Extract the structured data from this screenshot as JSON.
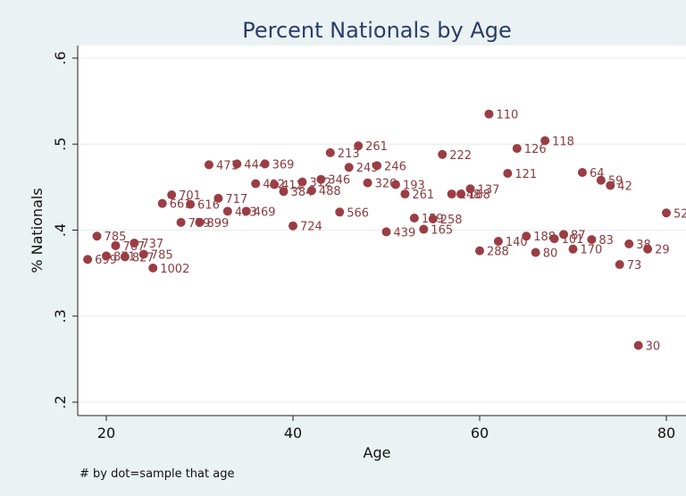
{
  "chart_data": {
    "type": "scatter",
    "title": "Percent Nationals by Age",
    "xlabel": "Age",
    "ylabel": "% Nationals",
    "note": "# by dot=sample that age",
    "xlim": [
      17,
      82
    ],
    "ylim": [
      0.2,
      0.6
    ],
    "xticks": [
      20,
      40,
      60,
      80
    ],
    "yticks": [
      0.2,
      0.3,
      0.4,
      0.5,
      0.6
    ],
    "ytick_labels": [
      ".2",
      ".3",
      ".4",
      ".5",
      ".6"
    ],
    "grid": true,
    "marker_color": "#9b3d44",
    "label_color": "#8a3b3f",
    "points": [
      {
        "x": 18,
        "y": 0.366,
        "label": "699"
      },
      {
        "x": 19,
        "y": 0.393,
        "label": "785"
      },
      {
        "x": 20,
        "y": 0.37,
        "label": "871"
      },
      {
        "x": 21,
        "y": 0.382,
        "label": "767"
      },
      {
        "x": 22,
        "y": 0.369,
        "label": "827"
      },
      {
        "x": 23,
        "y": 0.385,
        "label": "737"
      },
      {
        "x": 24,
        "y": 0.372,
        "label": "785"
      },
      {
        "x": 25,
        "y": 0.356,
        "label": "1002"
      },
      {
        "x": 26,
        "y": 0.431,
        "label": "661"
      },
      {
        "x": 27,
        "y": 0.441,
        "label": "701"
      },
      {
        "x": 28,
        "y": 0.409,
        "label": "779"
      },
      {
        "x": 29,
        "y": 0.43,
        "label": "616"
      },
      {
        "x": 30,
        "y": 0.409,
        "label": "899"
      },
      {
        "x": 31,
        "y": 0.476,
        "label": "471"
      },
      {
        "x": 32,
        "y": 0.437,
        "label": "717"
      },
      {
        "x": 33,
        "y": 0.422,
        "label": "493"
      },
      {
        "x": 34,
        "y": 0.477,
        "label": "444"
      },
      {
        "x": 35,
        "y": 0.422,
        "label": "469"
      },
      {
        "x": 36,
        "y": 0.454,
        "label": "492"
      },
      {
        "x": 37,
        "y": 0.477,
        "label": "369"
      },
      {
        "x": 38,
        "y": 0.453,
        "label": "412"
      },
      {
        "x": 39,
        "y": 0.445,
        "label": "384"
      },
      {
        "x": 40,
        "y": 0.405,
        "label": "724"
      },
      {
        "x": 41,
        "y": 0.456,
        "label": "312"
      },
      {
        "x": 42,
        "y": 0.446,
        "label": "488"
      },
      {
        "x": 43,
        "y": 0.459,
        "label": "346"
      },
      {
        "x": 44,
        "y": 0.49,
        "label": "213"
      },
      {
        "x": 45,
        "y": 0.421,
        "label": "566"
      },
      {
        "x": 46,
        "y": 0.473,
        "label": "245"
      },
      {
        "x": 47,
        "y": 0.498,
        "label": "261"
      },
      {
        "x": 48,
        "y": 0.455,
        "label": "320"
      },
      {
        "x": 49,
        "y": 0.475,
        "label": "246"
      },
      {
        "x": 50,
        "y": 0.398,
        "label": "439"
      },
      {
        "x": 51,
        "y": 0.453,
        "label": "193"
      },
      {
        "x": 52,
        "y": 0.442,
        "label": "261"
      },
      {
        "x": 53,
        "y": 0.414,
        "label": "159"
      },
      {
        "x": 54,
        "y": 0.401,
        "label": "165"
      },
      {
        "x": 55,
        "y": 0.413,
        "label": "258"
      },
      {
        "x": 56,
        "y": 0.488,
        "label": "222"
      },
      {
        "x": 57,
        "y": 0.442,
        "label": "148"
      },
      {
        "x": 58,
        "y": 0.442,
        "label": "168"
      },
      {
        "x": 59,
        "y": 0.448,
        "label": "137"
      },
      {
        "x": 60,
        "y": 0.376,
        "label": "288"
      },
      {
        "x": 61,
        "y": 0.535,
        "label": "110"
      },
      {
        "x": 62,
        "y": 0.387,
        "label": "140"
      },
      {
        "x": 63,
        "y": 0.466,
        "label": "121"
      },
      {
        "x": 64,
        "y": 0.495,
        "label": "126"
      },
      {
        "x": 65,
        "y": 0.393,
        "label": "188"
      },
      {
        "x": 66,
        "y": 0.374,
        "label": "80"
      },
      {
        "x": 67,
        "y": 0.504,
        "label": "118"
      },
      {
        "x": 68,
        "y": 0.39,
        "label": "101"
      },
      {
        "x": 69,
        "y": 0.395,
        "label": "87"
      },
      {
        "x": 70,
        "y": 0.378,
        "label": "170"
      },
      {
        "x": 71,
        "y": 0.467,
        "label": "64"
      },
      {
        "x": 72,
        "y": 0.389,
        "label": "83"
      },
      {
        "x": 73,
        "y": 0.458,
        "label": "59"
      },
      {
        "x": 74,
        "y": 0.452,
        "label": "42"
      },
      {
        "x": 75,
        "y": 0.36,
        "label": "73"
      },
      {
        "x": 76,
        "y": 0.384,
        "label": "38"
      },
      {
        "x": 77,
        "y": 0.266,
        "label": "30"
      },
      {
        "x": 78,
        "y": 0.378,
        "label": "29"
      },
      {
        "x": 80,
        "y": 0.42,
        "label": "52"
      }
    ]
  }
}
